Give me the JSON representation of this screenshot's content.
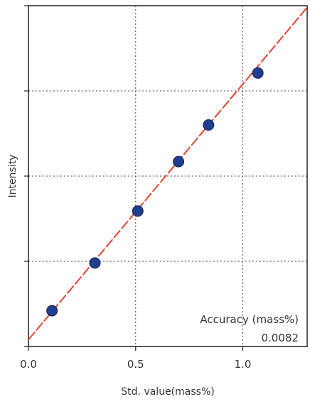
{
  "chart_data": {
    "type": "scatter",
    "xlabel": "Std. value(mass%)",
    "ylabel": "Intensity",
    "xlim": [
      0.0,
      1.3
    ],
    "ylim": [
      0,
      4
    ],
    "x_ticks": [
      0.0,
      0.5,
      1.0
    ],
    "x_tick_labels": [
      "0.0",
      "0.5",
      "1.0"
    ],
    "y_ticks": [
      0,
      1,
      2,
      3,
      4
    ],
    "grid": true,
    "series": [
      {
        "x": [
          0.11,
          0.31,
          0.51,
          0.7,
          0.84,
          1.07
        ],
        "y": [
          0.42,
          0.98,
          1.59,
          2.17,
          2.6,
          3.21
        ],
        "marker_color": "#1f3f8f"
      }
    ],
    "fit_line": {
      "style": "dashed",
      "color": "#e8432e",
      "slope": 3.0,
      "intercept": 0.08
    },
    "annotation": {
      "label": "Accuracy  (mass%)",
      "value": "0.0082"
    }
  }
}
